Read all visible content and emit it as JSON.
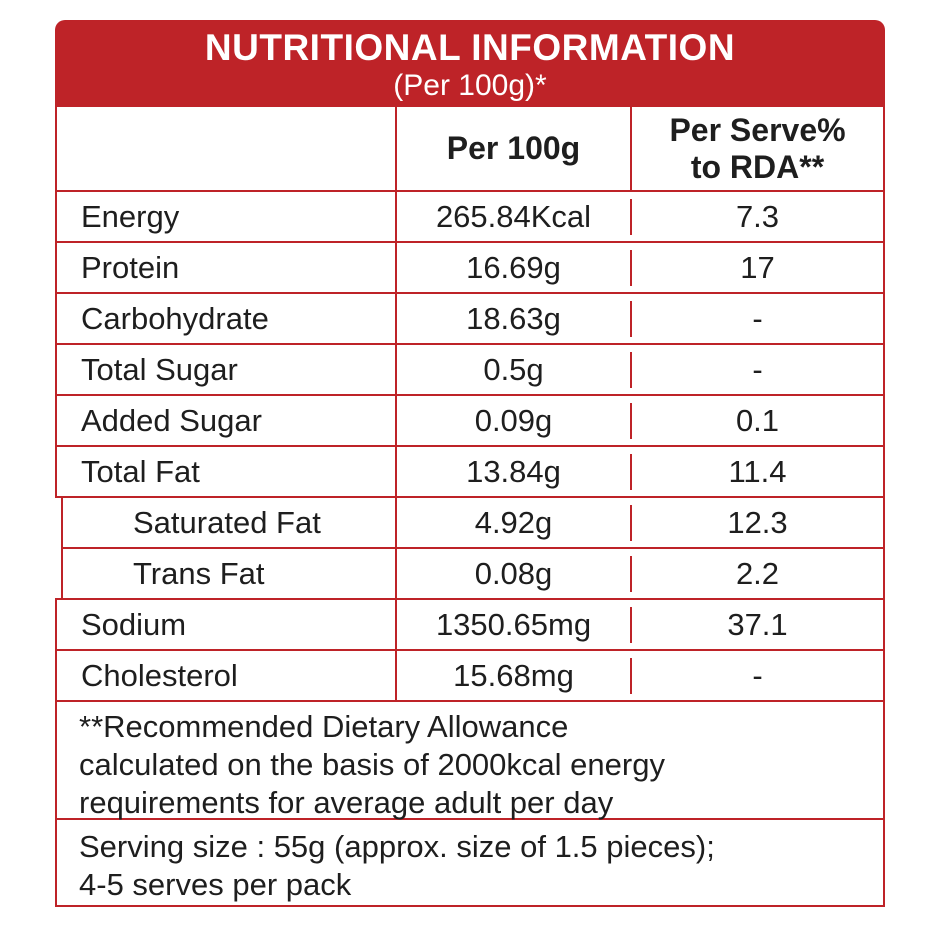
{
  "header": {
    "title": "NUTRITIONAL INFORMATION",
    "subtitle": "(Per 100g)*"
  },
  "columns": {
    "rowlabel": "",
    "per100g": "Per 100g",
    "rda_line1": "Per Serve%",
    "rda_line2": "to RDA**"
  },
  "rows": [
    {
      "label": "Energy",
      "per100g": "265.84Kcal",
      "rda": "7.3"
    },
    {
      "label": "Protein",
      "per100g": "16.69g",
      "rda": "17"
    },
    {
      "label": "Carbohydrate",
      "per100g": "18.63g",
      "rda": "-"
    },
    {
      "label": "Total Sugar",
      "per100g": "0.5g",
      "rda": "-"
    },
    {
      "label": "Added Sugar",
      "per100g": "0.09g",
      "rda": "0.1"
    },
    {
      "label": "Total Fat",
      "per100g": "13.84g",
      "rda": "11.4"
    },
    {
      "label": "Saturated Fat",
      "per100g": "4.92g",
      "rda": "12.3"
    },
    {
      "label": "Trans Fat",
      "per100g": "0.08g",
      "rda": "2.2"
    },
    {
      "label": "Sodium",
      "per100g": "1350.65mg",
      "rda": "37.1"
    },
    {
      "label": "Cholesterol",
      "per100g": "15.68mg",
      "rda": "-"
    }
  ],
  "footnotes": {
    "rda_line1": "**Recommended Dietary Allowance",
    "rda_line2": "calculated on the basis of 2000kcal energy",
    "rda_line3": "requirements for average adult per day",
    "serving_line1": "Serving size : 55g (approx. size of 1.5 pieces);",
    "serving_line2": "4-5 serves per pack"
  },
  "colors": {
    "brand_red": "#BE2328",
    "text": "#1E1E1E",
    "table_background": "#FFFFFF"
  }
}
